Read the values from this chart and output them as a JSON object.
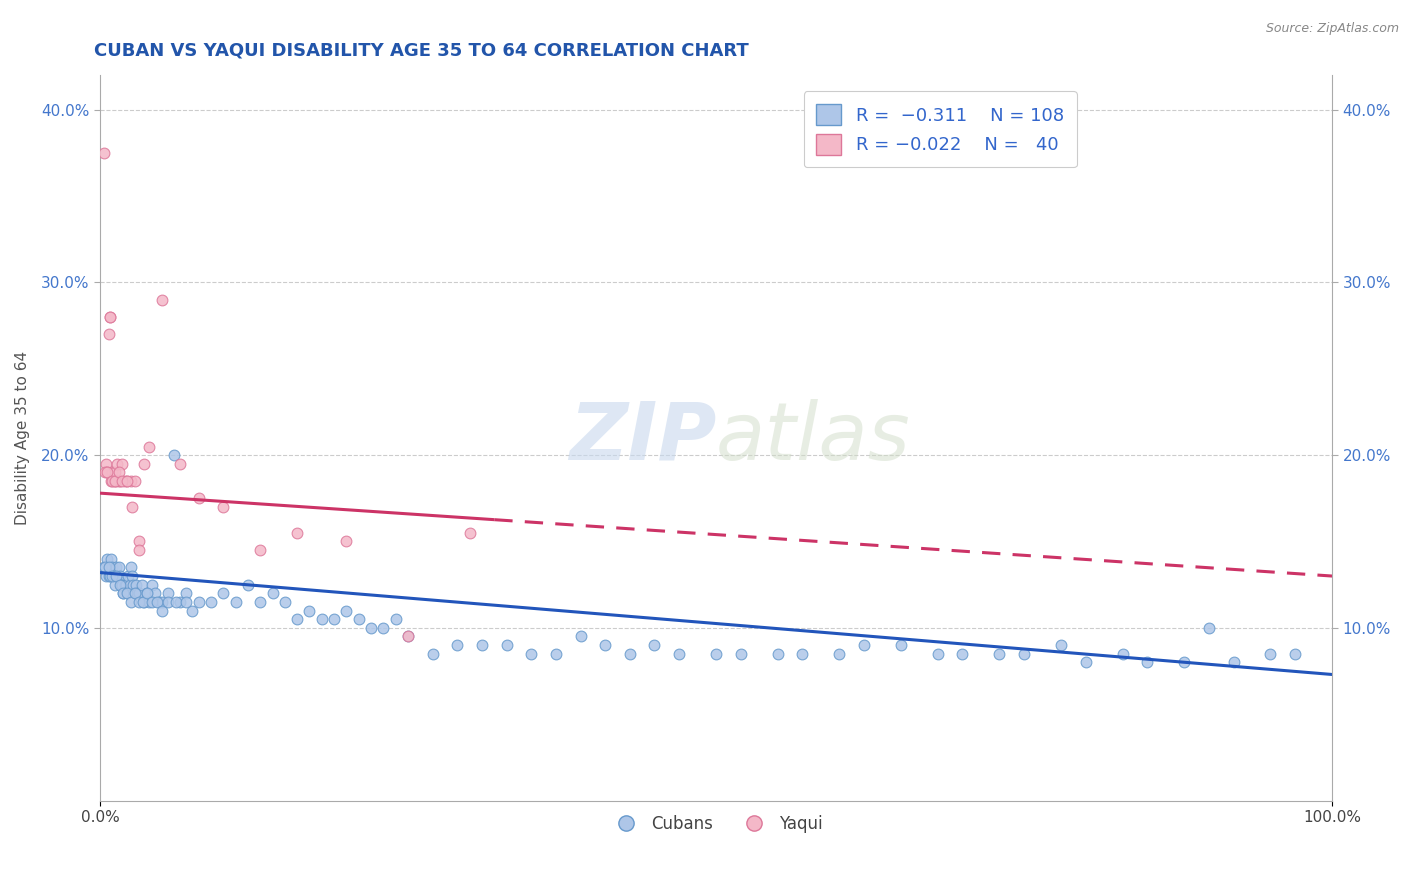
{
  "title": "CUBAN VS YAQUI DISABILITY AGE 35 TO 64 CORRELATION CHART",
  "source_text": "Source: ZipAtlas.com",
  "ylabel": "Disability Age 35 to 64",
  "title_color": "#2255aa",
  "title_fontsize": 13,
  "background_color": "#ffffff",
  "watermark_zip": "ZIP",
  "watermark_atlas": "atlas",
  "cubans_color": "#aec6e8",
  "cubans_edge_color": "#6699cc",
  "yaqui_color": "#f4b8c8",
  "yaqui_edge_color": "#dd7799",
  "trend_cuban_color": "#2255bb",
  "trend_yaqui_color": "#cc3366",
  "grid_color": "#cccccc",
  "xlim": [
    0.0,
    1.0
  ],
  "ylim": [
    0.0,
    0.42
  ],
  "cubans_x": [
    0.003,
    0.005,
    0.006,
    0.007,
    0.008,
    0.009,
    0.01,
    0.011,
    0.012,
    0.013,
    0.014,
    0.015,
    0.016,
    0.017,
    0.018,
    0.019,
    0.02,
    0.021,
    0.022,
    0.023,
    0.024,
    0.025,
    0.026,
    0.027,
    0.028,
    0.029,
    0.03,
    0.032,
    0.034,
    0.036,
    0.038,
    0.04,
    0.042,
    0.045,
    0.048,
    0.05,
    0.055,
    0.06,
    0.065,
    0.07,
    0.075,
    0.08,
    0.09,
    0.1,
    0.11,
    0.12,
    0.13,
    0.14,
    0.15,
    0.16,
    0.17,
    0.18,
    0.19,
    0.2,
    0.21,
    0.22,
    0.23,
    0.24,
    0.25,
    0.27,
    0.29,
    0.31,
    0.33,
    0.35,
    0.37,
    0.39,
    0.41,
    0.43,
    0.45,
    0.47,
    0.5,
    0.52,
    0.55,
    0.57,
    0.6,
    0.62,
    0.65,
    0.68,
    0.7,
    0.73,
    0.75,
    0.78,
    0.8,
    0.83,
    0.85,
    0.88,
    0.9,
    0.92,
    0.95,
    0.97,
    0.004,
    0.007,
    0.01,
    0.013,
    0.016,
    0.019,
    0.022,
    0.025,
    0.028,
    0.032,
    0.035,
    0.038,
    0.042,
    0.046,
    0.05,
    0.055,
    0.062,
    0.07
  ],
  "cubans_y": [
    0.135,
    0.13,
    0.14,
    0.13,
    0.13,
    0.14,
    0.135,
    0.13,
    0.125,
    0.135,
    0.13,
    0.135,
    0.13,
    0.125,
    0.125,
    0.12,
    0.125,
    0.125,
    0.12,
    0.13,
    0.125,
    0.135,
    0.13,
    0.125,
    0.12,
    0.125,
    0.12,
    0.12,
    0.125,
    0.115,
    0.12,
    0.115,
    0.125,
    0.12,
    0.115,
    0.115,
    0.12,
    0.2,
    0.115,
    0.12,
    0.11,
    0.115,
    0.115,
    0.12,
    0.115,
    0.125,
    0.115,
    0.12,
    0.115,
    0.105,
    0.11,
    0.105,
    0.105,
    0.11,
    0.105,
    0.1,
    0.1,
    0.105,
    0.095,
    0.085,
    0.09,
    0.09,
    0.09,
    0.085,
    0.085,
    0.095,
    0.09,
    0.085,
    0.09,
    0.085,
    0.085,
    0.085,
    0.085,
    0.085,
    0.085,
    0.09,
    0.09,
    0.085,
    0.085,
    0.085,
    0.085,
    0.09,
    0.08,
    0.085,
    0.08,
    0.08,
    0.1,
    0.08,
    0.085,
    0.085,
    0.135,
    0.135,
    0.13,
    0.13,
    0.125,
    0.12,
    0.12,
    0.115,
    0.12,
    0.115,
    0.115,
    0.12,
    0.115,
    0.115,
    0.11,
    0.115,
    0.115,
    0.115
  ],
  "yaqui_x": [
    0.003,
    0.005,
    0.006,
    0.007,
    0.008,
    0.009,
    0.01,
    0.011,
    0.012,
    0.013,
    0.014,
    0.015,
    0.016,
    0.018,
    0.02,
    0.022,
    0.025,
    0.028,
    0.032,
    0.036,
    0.04,
    0.05,
    0.065,
    0.08,
    0.1,
    0.13,
    0.16,
    0.2,
    0.25,
    0.3,
    0.004,
    0.006,
    0.008,
    0.01,
    0.012,
    0.015,
    0.018,
    0.022,
    0.026,
    0.032
  ],
  "yaqui_y": [
    0.375,
    0.195,
    0.19,
    0.27,
    0.28,
    0.185,
    0.19,
    0.185,
    0.19,
    0.185,
    0.195,
    0.185,
    0.185,
    0.195,
    0.185,
    0.185,
    0.185,
    0.185,
    0.15,
    0.195,
    0.205,
    0.29,
    0.195,
    0.175,
    0.17,
    0.145,
    0.155,
    0.15,
    0.095,
    0.155,
    0.19,
    0.19,
    0.28,
    0.185,
    0.185,
    0.19,
    0.185,
    0.185,
    0.17,
    0.145
  ],
  "trend_cuban_x0": 0.0,
  "trend_cuban_y0": 0.132,
  "trend_cuban_x1": 1.0,
  "trend_cuban_y1": 0.073,
  "trend_yaqui_x0": 0.0,
  "trend_yaqui_y0": 0.178,
  "trend_yaqui_x1": 1.0,
  "trend_yaqui_y1": 0.13,
  "trend_yaqui_solid_end": 0.32
}
